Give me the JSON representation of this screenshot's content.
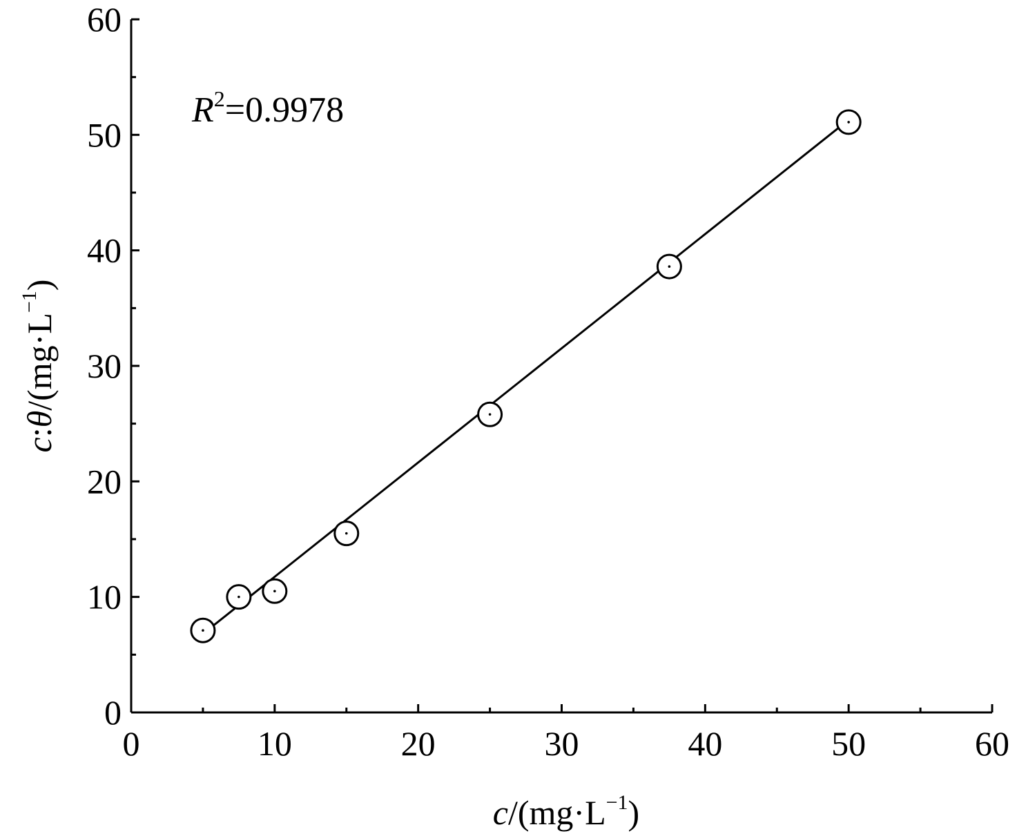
{
  "chart_data": {
    "type": "scatter",
    "title": "",
    "xlabel": {
      "var": "c",
      "unit": "/(mg·L",
      "sup": "−1",
      "close": ")"
    },
    "ylabel": {
      "var1": "c",
      "sep": ":",
      "var2": "θ",
      "unit": "/(mg·L",
      "sup": "−1",
      "close": ")"
    },
    "xlim": [
      0,
      60
    ],
    "ylim": [
      0,
      60
    ],
    "xticks": [
      0,
      10,
      20,
      30,
      40,
      50,
      60
    ],
    "yticks": [
      0,
      10,
      20,
      30,
      40,
      50,
      60
    ],
    "minor_step": 5,
    "grid": false,
    "series": [
      {
        "marker": "circle-dot",
        "x": [
          5,
          7.5,
          10,
          15,
          25,
          37.5,
          50
        ],
        "y": [
          7.1,
          10.0,
          10.5,
          15.5,
          25.8,
          38.6,
          51.1
        ]
      }
    ],
    "fit_line": {
      "x": [
        5,
        50
      ],
      "y": [
        6.8,
        51.3
      ]
    },
    "annotation": {
      "var": "R",
      "sup": "2",
      "text": "=0.9978"
    },
    "colors": {
      "line": "#000000",
      "marker_edge": "#000000",
      "marker_fill": "#ffffff"
    }
  }
}
